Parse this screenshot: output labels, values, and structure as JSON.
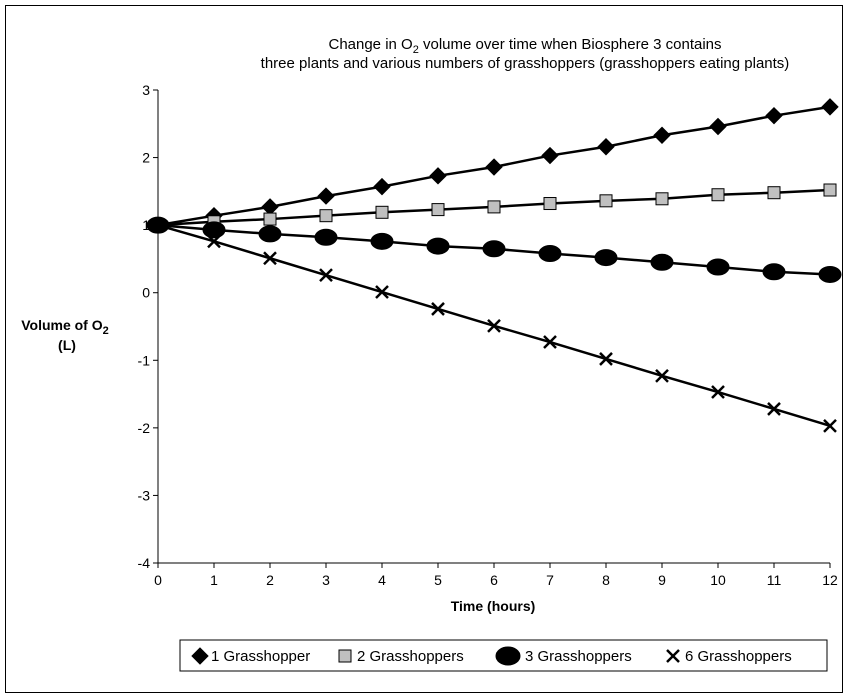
{
  "chart_data": {
    "type": "line",
    "title_line1_pre": "Change in O",
    "title_line1_sub": "2",
    "title_line1_post": " volume over time when Biosphere 3 contains",
    "title_line2": "three plants and various numbers of grasshoppers (grasshoppers eating plants)",
    "xlabel": "Time (hours)",
    "ylabel_pre": "Volume of O",
    "ylabel_sub": "2",
    "ylabel_unit": "(L)",
    "xlim": [
      0,
      12
    ],
    "ylim": [
      -4,
      3
    ],
    "x_ticks": [
      "0",
      "1",
      "2",
      "3",
      "4",
      "5",
      "6",
      "7",
      "8",
      "9",
      "10",
      "11",
      "12"
    ],
    "y_ticks": [
      "3",
      "2",
      "1",
      "0",
      "-1",
      "-2",
      "-3",
      "-4"
    ],
    "grid": false,
    "legend_position": "bottom",
    "x": [
      0,
      1,
      2,
      3,
      4,
      5,
      6,
      7,
      8,
      9,
      10,
      11,
      12
    ],
    "series": [
      {
        "name": "1 Grasshopper",
        "marker": "diamond",
        "color": "#000000",
        "fill": "#000000",
        "values": [
          1.0,
          1.14,
          1.27,
          1.43,
          1.57,
          1.73,
          1.86,
          2.03,
          2.16,
          2.33,
          2.46,
          2.62,
          2.75
        ]
      },
      {
        "name": "2 Grasshoppers",
        "marker": "square",
        "color": "#000000",
        "fill": "#c0c0c0",
        "values": [
          1.0,
          1.05,
          1.09,
          1.14,
          1.19,
          1.23,
          1.27,
          1.32,
          1.36,
          1.39,
          1.45,
          1.48,
          1.52
        ]
      },
      {
        "name": "3 Grasshoppers",
        "marker": "ellipse",
        "color": "#000000",
        "fill": "#000000",
        "values": [
          1.0,
          0.93,
          0.87,
          0.82,
          0.76,
          0.69,
          0.65,
          0.58,
          0.52,
          0.45,
          0.38,
          0.31,
          0.27
        ]
      },
      {
        "name": "6 Grasshoppers",
        "marker": "x",
        "color": "#000000",
        "fill": "#000000",
        "values": [
          1.0,
          0.76,
          0.51,
          0.26,
          0.01,
          -0.24,
          -0.49,
          -0.73,
          -0.98,
          -1.23,
          -1.47,
          -1.72,
          -1.97
        ]
      }
    ]
  }
}
